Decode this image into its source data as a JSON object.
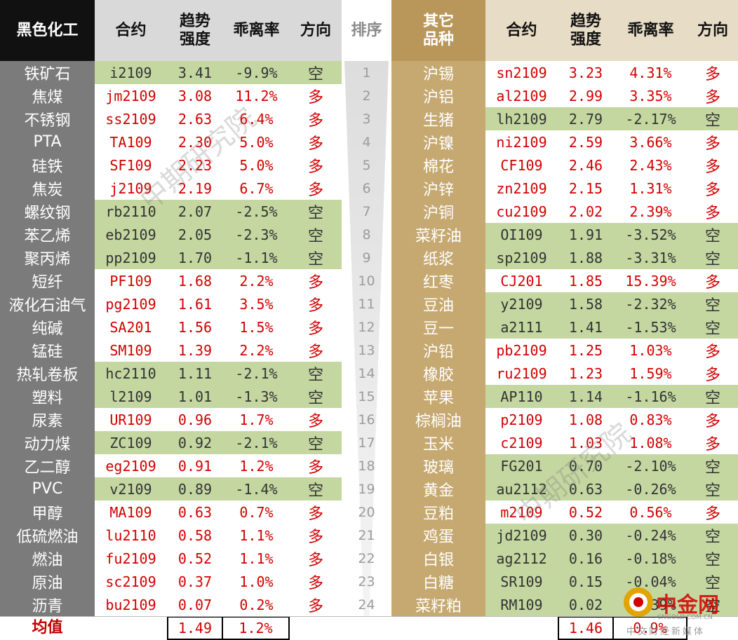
{
  "colors": {
    "header_left_black": "#111111",
    "header_gray": "#d9d9d9",
    "header_gold": "#b9975b",
    "header_tan": "#e7dcc6",
    "name_col_left": "#7b7b7b",
    "name_col_right": "#c6a971",
    "green_row": "#c4d7a0",
    "text_red": "#d20000",
    "avg_red": "#c00000"
  },
  "headers": {
    "left_category": "黑色化工",
    "contract": "合约",
    "trend_line1": "趋势",
    "trend_line2": "强度",
    "deviation": "乖离率",
    "direction": "方向",
    "rank": "排序",
    "right_category_line1": "其它",
    "right_category_line2": "品种"
  },
  "left_rows": [
    {
      "name": "铁矿石",
      "contract": "i2109",
      "strength": "3.41",
      "deviation": "-9.9%",
      "direction": "空",
      "short": true
    },
    {
      "name": "焦煤",
      "contract": "jm2109",
      "strength": "3.08",
      "deviation": "11.2%",
      "direction": "多",
      "short": false
    },
    {
      "name": "不锈钢",
      "contract": "ss2109",
      "strength": "2.63",
      "deviation": "6.4%",
      "direction": "多",
      "short": false
    },
    {
      "name": "PTA",
      "contract": "TA109",
      "strength": "2.30",
      "deviation": "5.0%",
      "direction": "多",
      "short": false
    },
    {
      "name": "硅铁",
      "contract": "SF109",
      "strength": "2.23",
      "deviation": "5.0%",
      "direction": "多",
      "short": false
    },
    {
      "name": "焦炭",
      "contract": "j2109",
      "strength": "2.19",
      "deviation": "6.7%",
      "direction": "多",
      "short": false
    },
    {
      "name": "螺纹钢",
      "contract": "rb2110",
      "strength": "2.07",
      "deviation": "-2.5%",
      "direction": "空",
      "short": true
    },
    {
      "name": "苯乙烯",
      "contract": "eb2109",
      "strength": "2.05",
      "deviation": "-2.3%",
      "direction": "空",
      "short": true
    },
    {
      "name": "聚丙烯",
      "contract": "pp2109",
      "strength": "1.70",
      "deviation": "-1.1%",
      "direction": "空",
      "short": true
    },
    {
      "name": "短纤",
      "contract": "PF109",
      "strength": "1.68",
      "deviation": "2.2%",
      "direction": "多",
      "short": false
    },
    {
      "name": "液化石油气",
      "contract": "pg2109",
      "strength": "1.61",
      "deviation": "3.5%",
      "direction": "多",
      "short": false
    },
    {
      "name": "纯碱",
      "contract": "SA201",
      "strength": "1.56",
      "deviation": "1.5%",
      "direction": "多",
      "short": false
    },
    {
      "name": "锰硅",
      "contract": "SM109",
      "strength": "1.39",
      "deviation": "2.2%",
      "direction": "多",
      "short": false
    },
    {
      "name": "热轧卷板",
      "contract": "hc2110",
      "strength": "1.11",
      "deviation": "-2.1%",
      "direction": "空",
      "short": true
    },
    {
      "name": "塑料",
      "contract": "l2109",
      "strength": "1.01",
      "deviation": "-1.3%",
      "direction": "空",
      "short": true
    },
    {
      "name": "尿素",
      "contract": "UR109",
      "strength": "0.96",
      "deviation": "1.7%",
      "direction": "多",
      "short": false
    },
    {
      "name": "动力煤",
      "contract": "ZC109",
      "strength": "0.92",
      "deviation": "-2.1%",
      "direction": "空",
      "short": true
    },
    {
      "name": "乙二醇",
      "contract": "eg2109",
      "strength": "0.91",
      "deviation": "1.2%",
      "direction": "多",
      "short": false
    },
    {
      "name": "PVC",
      "contract": "v2109",
      "strength": "0.89",
      "deviation": "-1.4%",
      "direction": "空",
      "short": true
    },
    {
      "name": "甲醇",
      "contract": "MA109",
      "strength": "0.63",
      "deviation": "0.7%",
      "direction": "多",
      "short": false
    },
    {
      "name": "低硫燃油",
      "contract": "lu2110",
      "strength": "0.58",
      "deviation": "1.1%",
      "direction": "多",
      "short": false
    },
    {
      "name": "燃油",
      "contract": "fu2109",
      "strength": "0.52",
      "deviation": "1.1%",
      "direction": "多",
      "short": false
    },
    {
      "name": "原油",
      "contract": "sc2109",
      "strength": "0.37",
      "deviation": "1.0%",
      "direction": "多",
      "short": false
    },
    {
      "name": "沥青",
      "contract": "bu2109",
      "strength": "0.07",
      "deviation": "0.2%",
      "direction": "多",
      "short": false
    }
  ],
  "right_rows": [
    {
      "name": "沪锡",
      "contract": "sn2109",
      "strength": "3.23",
      "deviation": "4.31%",
      "direction": "多",
      "short": false
    },
    {
      "name": "沪铝",
      "contract": "al2109",
      "strength": "2.99",
      "deviation": "3.35%",
      "direction": "多",
      "short": false
    },
    {
      "name": "生猪",
      "contract": "lh2109",
      "strength": "2.79",
      "deviation": "-2.17%",
      "direction": "空",
      "short": true
    },
    {
      "name": "沪镍",
      "contract": "ni2109",
      "strength": "2.59",
      "deviation": "3.66%",
      "direction": "多",
      "short": false
    },
    {
      "name": "棉花",
      "contract": "CF109",
      "strength": "2.46",
      "deviation": "2.43%",
      "direction": "多",
      "short": false
    },
    {
      "name": "沪锌",
      "contract": "zn2109",
      "strength": "2.15",
      "deviation": "1.31%",
      "direction": "多",
      "short": false
    },
    {
      "name": "沪铜",
      "contract": "cu2109",
      "strength": "2.02",
      "deviation": "2.39%",
      "direction": "多",
      "short": false
    },
    {
      "name": "菜籽油",
      "contract": "OI109",
      "strength": "1.91",
      "deviation": "-3.52%",
      "direction": "空",
      "short": true
    },
    {
      "name": "纸浆",
      "contract": "sp2109",
      "strength": "1.88",
      "deviation": "-3.31%",
      "direction": "空",
      "short": true
    },
    {
      "name": "红枣",
      "contract": "CJ201",
      "strength": "1.85",
      "deviation": "15.39%",
      "direction": "多",
      "short": false
    },
    {
      "name": "豆油",
      "contract": "y2109",
      "strength": "1.58",
      "deviation": "-2.32%",
      "direction": "空",
      "short": true
    },
    {
      "name": "豆一",
      "contract": "a2111",
      "strength": "1.41",
      "deviation": "-1.53%",
      "direction": "空",
      "short": true
    },
    {
      "name": "沪铅",
      "contract": "pb2109",
      "strength": "1.25",
      "deviation": "1.03%",
      "direction": "多",
      "short": false
    },
    {
      "name": "橡胶",
      "contract": "ru2109",
      "strength": "1.23",
      "deviation": "1.59%",
      "direction": "多",
      "short": false
    },
    {
      "name": "苹果",
      "contract": "AP110",
      "strength": "1.14",
      "deviation": "-1.16%",
      "direction": "空",
      "short": true
    },
    {
      "name": "棕榈油",
      "contract": "p2109",
      "strength": "1.08",
      "deviation": "0.83%",
      "direction": "多",
      "short": false
    },
    {
      "name": "玉米",
      "contract": "c2109",
      "strength": "1.03",
      "deviation": "1.08%",
      "direction": "多",
      "short": false
    },
    {
      "name": "玻璃",
      "contract": "FG201",
      "strength": "0.70",
      "deviation": "-2.10%",
      "direction": "空",
      "short": true
    },
    {
      "name": "黄金",
      "contract": "au2112",
      "strength": "0.63",
      "deviation": "-0.26%",
      "direction": "空",
      "short": true
    },
    {
      "name": "豆粕",
      "contract": "m2109",
      "strength": "0.52",
      "deviation": "0.56%",
      "direction": "多",
      "short": false
    },
    {
      "name": "鸡蛋",
      "contract": "jd2109",
      "strength": "0.30",
      "deviation": "-0.24%",
      "direction": "空",
      "short": true
    },
    {
      "name": "白银",
      "contract": "ag2112",
      "strength": "0.16",
      "deviation": "-0.18%",
      "direction": "空",
      "short": true
    },
    {
      "name": "白糖",
      "contract": "SR109",
      "strength": "0.15",
      "deviation": "-0.04%",
      "direction": "空",
      "short": true
    },
    {
      "name": "菜籽粕",
      "contract": "RM109",
      "strength": "0.02",
      "deviation": "-0.39%",
      "direction": "空",
      "short": true
    }
  ],
  "ranks": [
    "1",
    "2",
    "3",
    "4",
    "5",
    "6",
    "7",
    "8",
    "9",
    "10",
    "11",
    "12",
    "13",
    "14",
    "15",
    "16",
    "17",
    "18",
    "19",
    "20",
    "21",
    "22",
    "23",
    "24"
  ],
  "average": {
    "label": "均值",
    "left_strength": "1.49",
    "left_deviation": "1.2%",
    "right_strength": "1.46",
    "right_deviation": "0.9%"
  },
  "watermark": {
    "text": "中期研究院"
  },
  "logo": {
    "main": "中金网",
    "url": "CNGOLD.COM.CN",
    "tagline": "中文财经新媒体",
    "icon": "logo-circle-icon"
  }
}
